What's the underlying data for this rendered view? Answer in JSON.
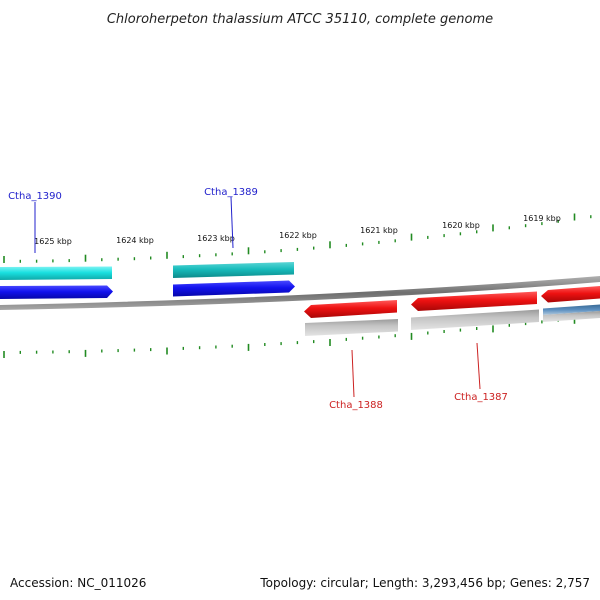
{
  "title": "Chloroherpeton thalassium ATCC 35110, complete genome",
  "footer": {
    "accession": "Accession: NC_011026",
    "summary": "Topology: circular; Length: 3,293,456 bp; Genes: 2,757"
  },
  "ticks": [
    {
      "label": "1625 kbp"
    },
    {
      "label": "1624 kbp"
    },
    {
      "label": "1623 kbp"
    },
    {
      "label": "1622 kbp"
    },
    {
      "label": "1621 kbp"
    },
    {
      "label": "1620 kbp"
    },
    {
      "label": "1619 kbp"
    }
  ],
  "gene_labels": [
    {
      "name": "Ctha_1390",
      "strand": "forward"
    },
    {
      "name": "Ctha_1389",
      "strand": "forward"
    },
    {
      "name": "Ctha_1388",
      "strand": "reverse"
    },
    {
      "name": "Ctha_1387",
      "strand": "reverse"
    }
  ],
  "colors": {
    "forward_cds": "#1010e8",
    "forward_gene": "#19d9d9",
    "forward_gene_dark": "#14b3b3",
    "reverse_cds": "#ee1111",
    "reverse_gene": "#b8b8b8",
    "reverse_other": "#4a7fb0",
    "backbone": "#8a8a8a",
    "ticks": "#228b22"
  }
}
